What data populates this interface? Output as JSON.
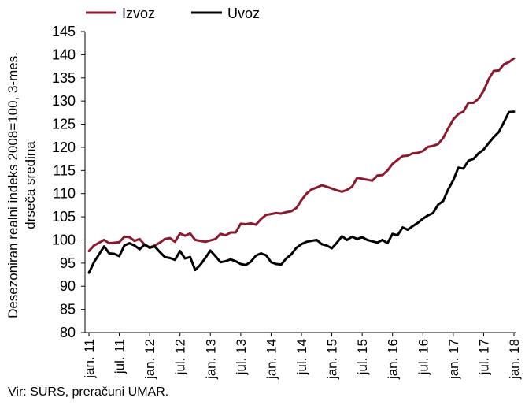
{
  "chart_data": {
    "type": "line",
    "ylabel_line1": "Desezoniran realni indeks 2008=100, 3-mes.",
    "ylabel_line2": "drseča sredina",
    "ylim": [
      80,
      145
    ],
    "yticks": [
      80,
      85,
      90,
      95,
      100,
      105,
      110,
      115,
      120,
      125,
      130,
      135,
      140,
      145
    ],
    "xtick_labels": [
      "jan. 11",
      "jul. 11",
      "jan. 12",
      "jul. 12",
      "jan. 13",
      "jul. 13",
      "jan. 14",
      "jul. 14",
      "jan. 15",
      "jul. 15",
      "jan. 16",
      "jul. 16",
      "jan. 17",
      "jul. 17",
      "jan. 18"
    ],
    "grid": false,
    "legend_position": "top-left",
    "series": [
      {
        "name": "Izvoz",
        "color": "#8b1a2e",
        "values": [
          97.6,
          98.8,
          99.4,
          100.0,
          99.3,
          99.4,
          99.5,
          100.7,
          100.6,
          99.8,
          100.2,
          99.0,
          98.4,
          98.8,
          99.4,
          100.2,
          100.4,
          99.6,
          101.4,
          100.9,
          101.4,
          100.0,
          99.8,
          99.6,
          99.9,
          100.2,
          101.3,
          101.0,
          101.6,
          101.6,
          103.5,
          103.4,
          103.6,
          103.3,
          104.5,
          105.4,
          105.6,
          105.8,
          105.7,
          106.0,
          106.2,
          106.9,
          108.6,
          110.0,
          110.9,
          111.3,
          111.8,
          111.5,
          111.1,
          110.7,
          110.4,
          110.8,
          111.5,
          113.4,
          113.2,
          113.0,
          112.8,
          113.9,
          114.0,
          115.0,
          116.4,
          117.3,
          118.1,
          118.2,
          118.7,
          118.8,
          119.2,
          120.1,
          120.3,
          120.7,
          122.0,
          124.1,
          126.0,
          127.2,
          127.7,
          129.6,
          129.6,
          130.5,
          132.2,
          134.7,
          136.5,
          136.6,
          137.9,
          138.4,
          139.2
        ],
        "last_x_label": "jan. 18"
      },
      {
        "name": "Uvoz",
        "color": "#000000",
        "values": [
          92.9,
          95.2,
          96.9,
          98.6,
          97.1,
          97.0,
          96.5,
          98.8,
          99.3,
          98.8,
          98.0,
          99.0,
          98.3,
          98.6,
          97.4,
          96.3,
          96.1,
          95.7,
          97.6,
          96.0,
          96.3,
          93.5,
          94.6,
          96.1,
          97.7,
          96.5,
          95.2,
          95.4,
          95.8,
          95.4,
          94.8,
          94.6,
          95.3,
          96.6,
          97.1,
          96.7,
          95.2,
          94.8,
          94.7,
          96.0,
          96.9,
          98.3,
          99.1,
          99.6,
          99.8,
          100.0,
          99.1,
          98.8,
          98.2,
          99.4,
          100.8,
          100.0,
          100.7,
          100.2,
          100.6,
          100.0,
          99.7,
          99.4,
          100.0,
          99.3,
          101.3,
          101.0,
          102.7,
          102.2,
          103.0,
          103.7,
          104.6,
          105.3,
          105.8,
          107.6,
          108.4,
          110.9,
          112.9,
          115.6,
          115.4,
          117.1,
          117.5,
          118.7,
          119.5,
          120.9,
          122.2,
          123.3,
          125.4,
          127.6,
          127.7
        ],
        "last_x_label": "jan. 18"
      }
    ]
  },
  "source_note": "Vir: SURS, preračuni UMAR."
}
